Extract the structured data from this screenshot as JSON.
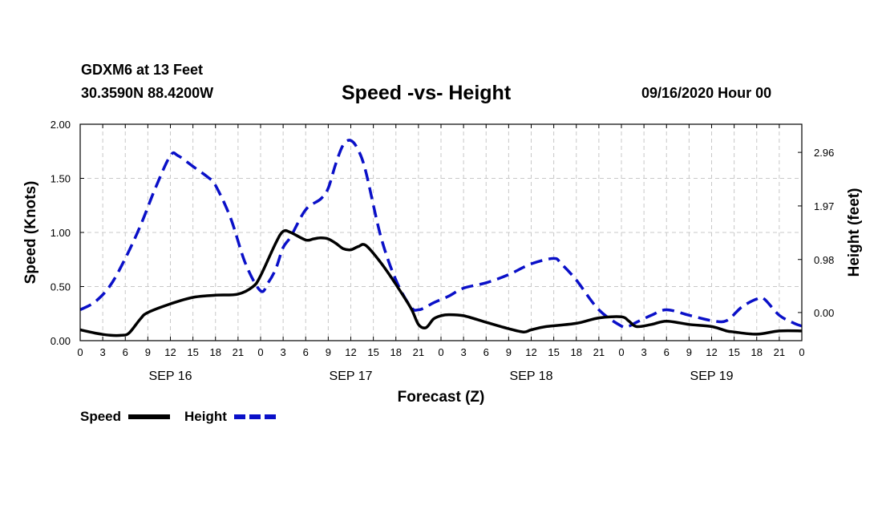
{
  "header": {
    "station": "GDXM6 at 13 Feet",
    "coords": "30.3590N 88.4200W",
    "title": "Speed -vs- Height",
    "datetime": "09/16/2020 Hour 00"
  },
  "colors": {
    "speed": "#000000",
    "height": "#0a10c8",
    "grid": "#c8c8c8"
  },
  "chart_data": {
    "type": "line",
    "title": "Speed -vs- Height",
    "xlabel": "Forecast (Z)",
    "ylabel": "Speed (Knots)",
    "y2label": "Height (feet)",
    "xlim": [
      0,
      96
    ],
    "ylim": [
      0,
      2
    ],
    "y2lim": [
      -0.52,
      3.48
    ],
    "x_ticks": [
      0,
      3,
      6,
      9,
      12,
      15,
      18,
      21,
      24,
      27,
      30,
      33,
      36,
      39,
      42,
      45,
      48,
      51,
      54,
      57,
      60,
      63,
      66,
      69,
      72,
      75,
      78,
      81,
      84,
      87,
      90,
      93,
      96
    ],
    "x_tick_labels": [
      "0",
      "3",
      "6",
      "9",
      "12",
      "15",
      "18",
      "21",
      "0",
      "3",
      "6",
      "9",
      "12",
      "15",
      "18",
      "21",
      "0",
      "3",
      "6",
      "9",
      "12",
      "15",
      "18",
      "21",
      "0",
      "3",
      "6",
      "9",
      "12",
      "15",
      "18",
      "21",
      "0"
    ],
    "day_labels": [
      {
        "x": 12,
        "label": "SEP 16"
      },
      {
        "x": 36,
        "label": "SEP 17"
      },
      {
        "x": 60,
        "label": "SEP 18"
      },
      {
        "x": 84,
        "label": "SEP 19"
      }
    ],
    "y_ticks": [
      0,
      0.5,
      1,
      1.5,
      2
    ],
    "y_tick_labels": [
      "0.00",
      "0.50",
      "1.00",
      "1.50",
      "2.00"
    ],
    "y2_ticks": [
      0,
      0.98,
      1.97,
      2.96
    ],
    "y2_tick_labels": [
      "0.00",
      "0.98",
      "1.97",
      "2.96"
    ],
    "legend": [
      "Speed",
      "Height"
    ],
    "series": [
      {
        "name": "Speed",
        "axis": "left",
        "style": "solid",
        "x": [
          0,
          2,
          4,
          5.5,
          6.5,
          8,
          9,
          12,
          15,
          18,
          21,
          23,
          24,
          26,
          27,
          28,
          30,
          31,
          32,
          33,
          34,
          35,
          36,
          37,
          38,
          40,
          42,
          44,
          45,
          46,
          47,
          48,
          49,
          51,
          54,
          57,
          59,
          60,
          62,
          66,
          69,
          72,
          73,
          74,
          76,
          78,
          81,
          84,
          86,
          87,
          90,
          93,
          96
        ],
        "y": [
          0.1,
          0.07,
          0.05,
          0.05,
          0.07,
          0.2,
          0.26,
          0.34,
          0.4,
          0.42,
          0.43,
          0.5,
          0.6,
          0.9,
          1.01,
          1.0,
          0.93,
          0.94,
          0.95,
          0.94,
          0.9,
          0.85,
          0.84,
          0.87,
          0.88,
          0.72,
          0.52,
          0.3,
          0.15,
          0.12,
          0.2,
          0.23,
          0.24,
          0.23,
          0.17,
          0.11,
          0.08,
          0.1,
          0.13,
          0.16,
          0.21,
          0.22,
          0.18,
          0.13,
          0.15,
          0.18,
          0.15,
          0.13,
          0.09,
          0.08,
          0.06,
          0.09,
          0.09
        ]
      },
      {
        "name": "Height",
        "axis": "right",
        "style": "dashed",
        "x": [
          0,
          2,
          4,
          6,
          8,
          10,
          12,
          13,
          15,
          17,
          18,
          20,
          22,
          24,
          25,
          26,
          27,
          28,
          30,
          32,
          33,
          34,
          35,
          36,
          37,
          38,
          40,
          42,
          44,
          45,
          46,
          47,
          49,
          51,
          54,
          57,
          60,
          63,
          64,
          66,
          69,
          72,
          73,
          74,
          76,
          78,
          81,
          84,
          86,
          88,
          90,
          91,
          93,
          95,
          96
        ],
        "y": [
          0.05,
          0.2,
          0.5,
          1.0,
          1.6,
          2.3,
          2.9,
          2.9,
          2.7,
          2.5,
          2.35,
          1.75,
          0.9,
          0.4,
          0.55,
          0.8,
          1.2,
          1.4,
          1.9,
          2.1,
          2.3,
          2.75,
          3.1,
          3.18,
          3.0,
          2.6,
          1.4,
          0.6,
          0.1,
          0.05,
          0.1,
          0.18,
          0.3,
          0.45,
          0.55,
          0.7,
          0.9,
          1.0,
          0.9,
          0.6,
          0.05,
          -0.25,
          -0.25,
          -0.18,
          -0.05,
          0.05,
          -0.05,
          -0.15,
          -0.15,
          0.1,
          0.25,
          0.25,
          -0.05,
          -0.2,
          -0.25
        ]
      }
    ]
  }
}
